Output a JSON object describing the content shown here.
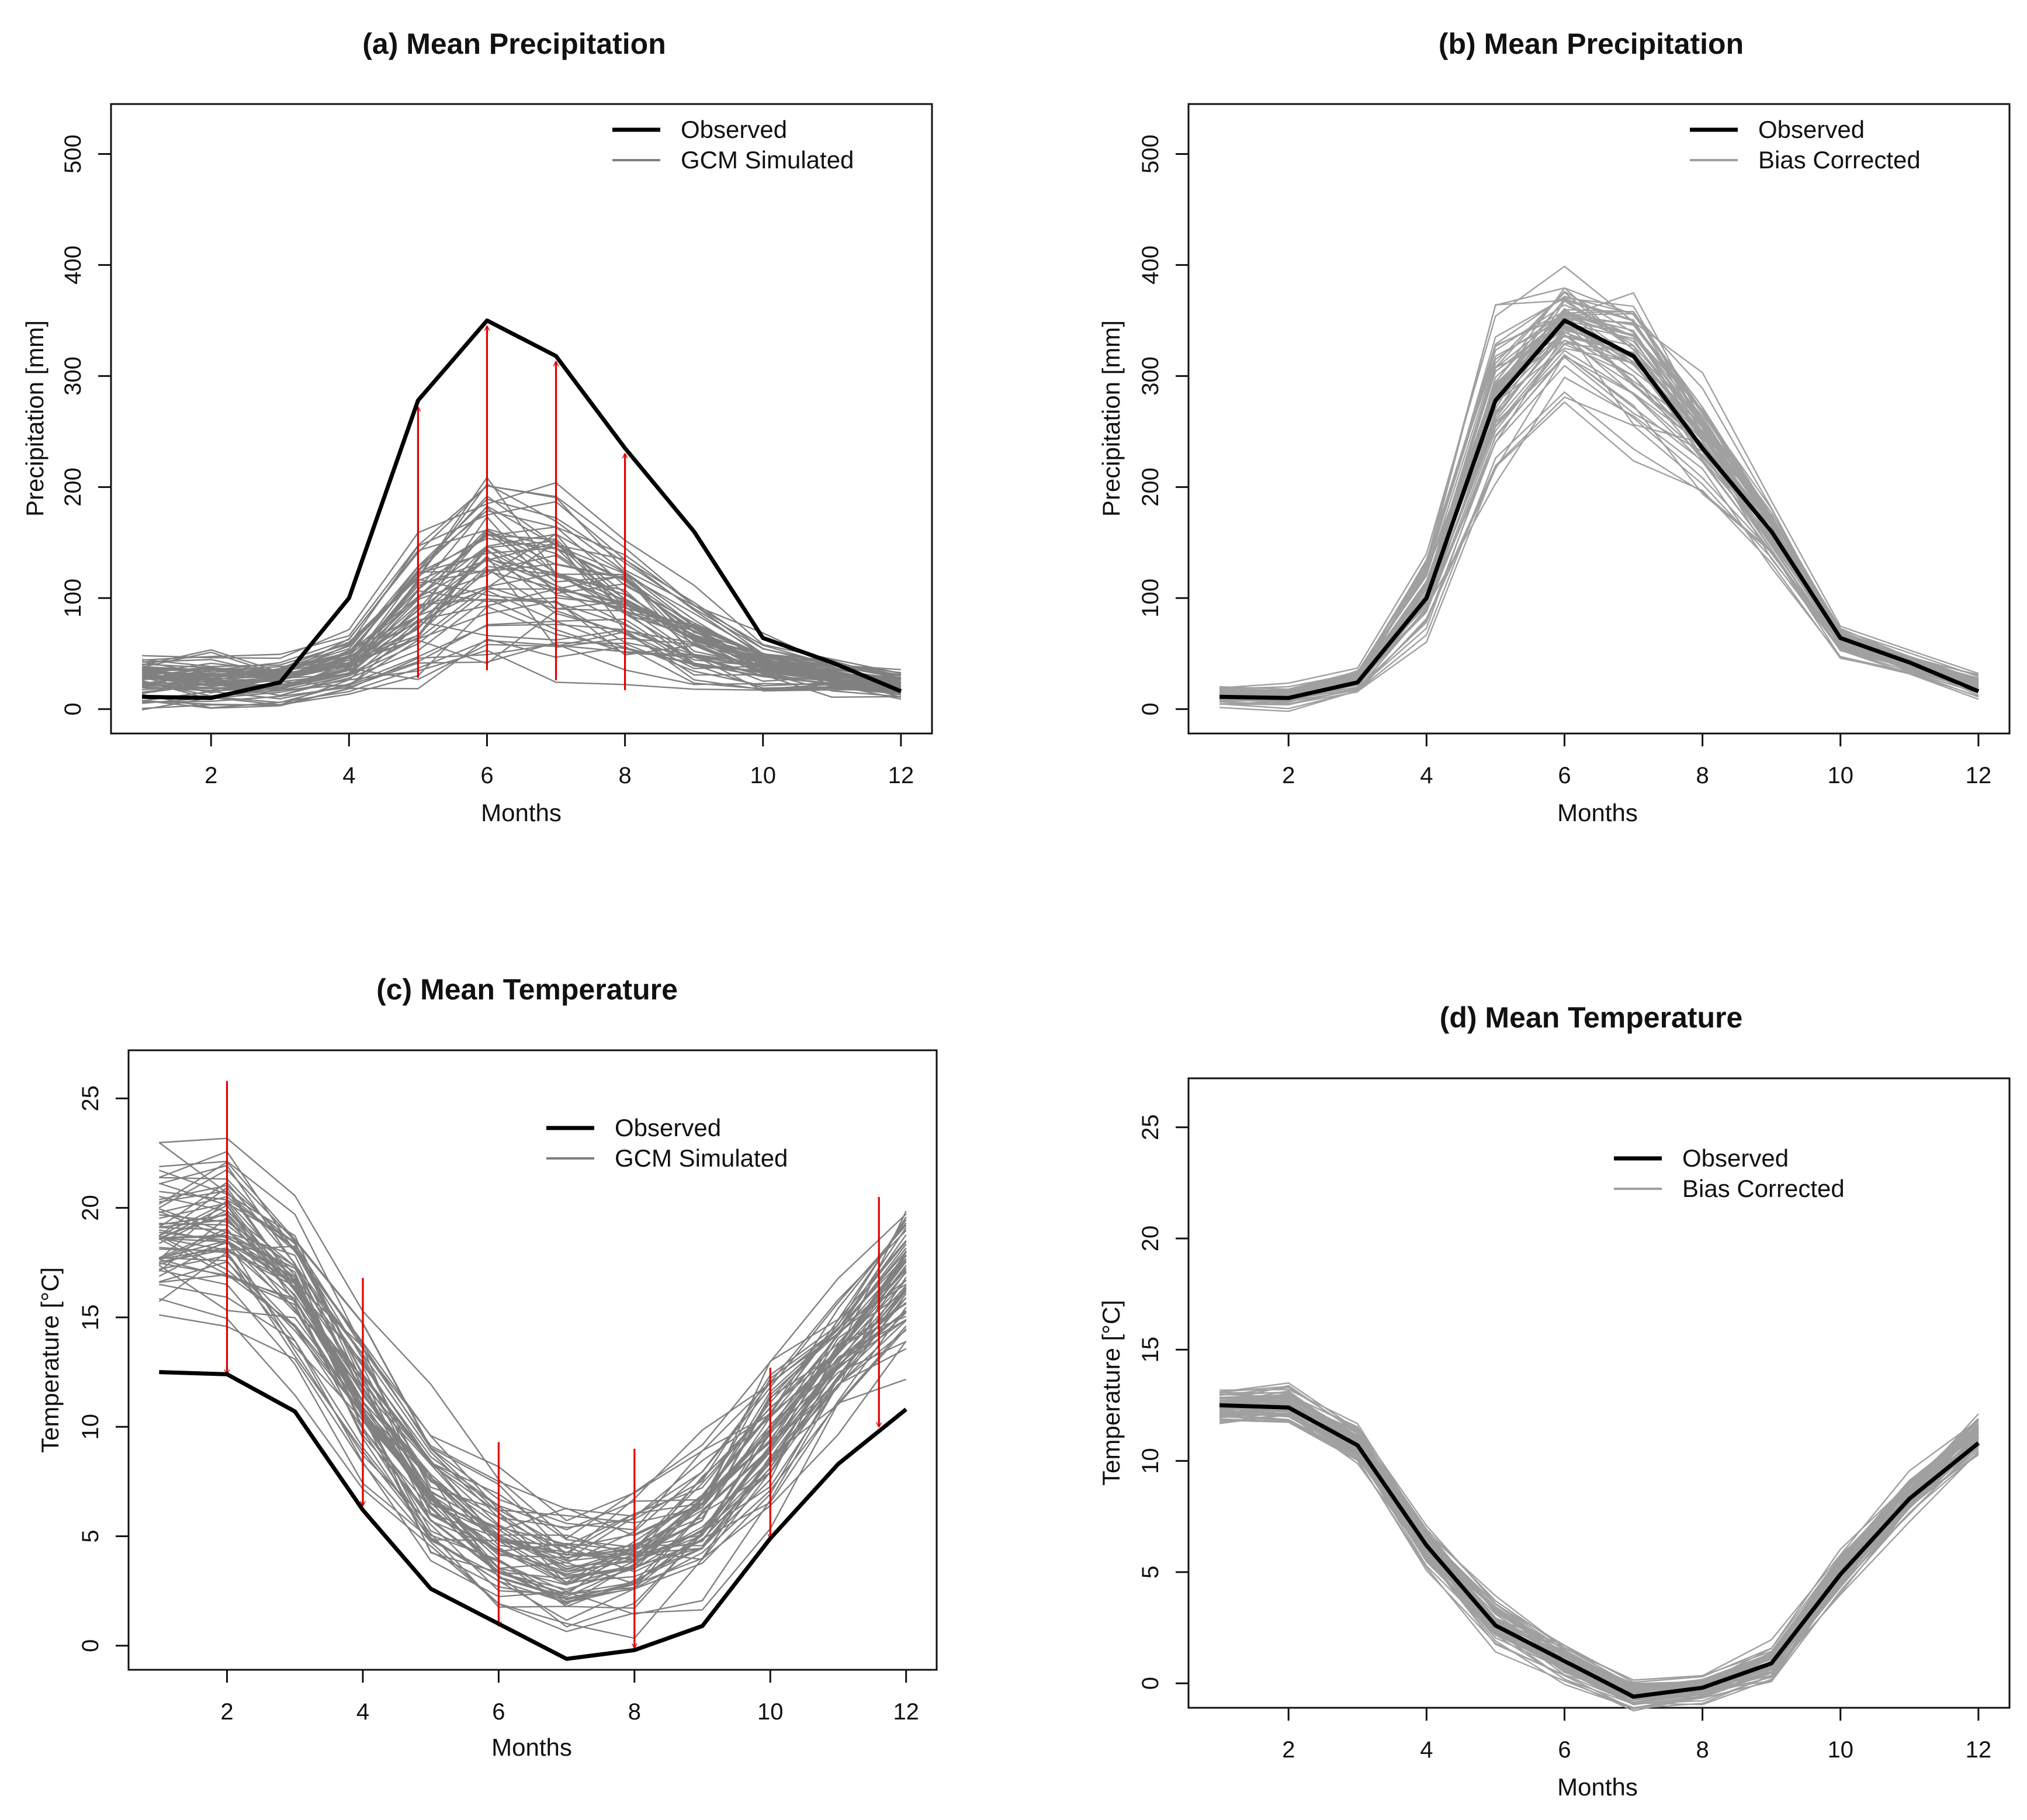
{
  "figure": {
    "description_labels": "four panel comparison of observed vs GCM and bias corrected series"
  },
  "chart_data": [
    {
      "id": "a",
      "type": "line",
      "title": "(a) Mean Precipitation",
      "xlabel": "Months",
      "ylabel": "Precipitation [mm]",
      "xlim": [
        0.55,
        12.45
      ],
      "ylim": [
        -22,
        545
      ],
      "xticks": [
        2,
        4,
        6,
        8,
        10,
        12
      ],
      "yticks": [
        0,
        100,
        200,
        300,
        400,
        500
      ],
      "legend": {
        "placement": "top-right",
        "entries": [
          "Observed",
          "GCM Simulated"
        ]
      },
      "observed": {
        "name": "Observed",
        "x": [
          1,
          2,
          3,
          4,
          5,
          6,
          7,
          8,
          9,
          10,
          11,
          12
        ],
        "values": [
          11,
          10,
          24,
          100,
          278,
          350,
          318,
          235,
          160,
          64,
          42,
          16
        ]
      },
      "ensemble": {
        "name": "GCM Simulated",
        "count": 60,
        "mean": [
          27,
          27,
          26,
          42,
          95,
          135,
          120,
          95,
          65,
          40,
          30,
          22
        ],
        "spread": [
          16,
          16,
          14,
          18,
          45,
          60,
          52,
          42,
          25,
          15,
          10,
          8
        ]
      },
      "arrows": [
        {
          "x": 5,
          "from": 28,
          "to": 272
        },
        {
          "x": 6,
          "from": 35,
          "to": 345
        },
        {
          "x": 7,
          "from": 26,
          "to": 313
        },
        {
          "x": 8,
          "from": 17,
          "to": 230
        }
      ]
    },
    {
      "id": "b",
      "type": "line",
      "title": "(b) Mean Precipitation",
      "xlabel": "Months",
      "ylabel": "Precipitation [mm]",
      "xlim": [
        0.55,
        12.45
      ],
      "ylim": [
        -22,
        545
      ],
      "xticks": [
        2,
        4,
        6,
        8,
        10,
        12
      ],
      "yticks": [
        0,
        100,
        200,
        300,
        400,
        500
      ],
      "legend": {
        "placement": "top-right",
        "entries": [
          "Observed",
          "Bias Corrected"
        ]
      },
      "observed": {
        "name": "Observed",
        "x": [
          1,
          2,
          3,
          4,
          5,
          6,
          7,
          8,
          9,
          10,
          11,
          12
        ],
        "values": [
          11,
          10,
          24,
          100,
          278,
          350,
          318,
          235,
          160,
          64,
          42,
          16
        ]
      },
      "ensemble": {
        "name": "Bias Corrected",
        "count": 60,
        "mean": [
          13,
          12,
          26,
          105,
          285,
          345,
          320,
          245,
          160,
          62,
          42,
          22
        ],
        "spread": [
          6,
          6,
          6,
          22,
          45,
          35,
          42,
          30,
          20,
          8,
          6,
          6
        ]
      },
      "arrows": []
    },
    {
      "id": "c",
      "type": "line",
      "title": "(c) Mean Temperature",
      "xlabel": "Months",
      "ylabel": "Temperature [°C]",
      "xlim": [
        0.55,
        12.45
      ],
      "ylim": [
        -1.1,
        27.2
      ],
      "xticks": [
        2,
        4,
        6,
        8,
        10,
        12
      ],
      "yticks": [
        0,
        5,
        10,
        15,
        20,
        25
      ],
      "legend": {
        "placement": "top-right",
        "entries": [
          "Observed",
          "GCM Simulated"
        ]
      },
      "observed": {
        "name": "Observed",
        "x": [
          1,
          2,
          3,
          4,
          5,
          6,
          7,
          8,
          9,
          10,
          11,
          12
        ],
        "values": [
          12.5,
          12.4,
          10.7,
          6.2,
          2.6,
          1.0,
          -0.6,
          -0.2,
          0.9,
          4.9,
          8.3,
          10.8
        ]
      },
      "ensemble": {
        "name": "GCM Simulated",
        "count": 60,
        "mean": [
          18.8,
          19.0,
          16.0,
          11.0,
          6.8,
          4.5,
          3.5,
          3.9,
          5.7,
          9.5,
          13.2,
          16.6
        ],
        "spread": [
          2.6,
          2.8,
          2.8,
          2.6,
          2.3,
          2.1,
          2.0,
          2.1,
          2.2,
          2.2,
          2.1,
          2.6
        ]
      },
      "arrows": [
        {
          "x": 2,
          "from": 25.8,
          "to": 12.4
        },
        {
          "x": 4,
          "from": 16.8,
          "to": 6.4
        },
        {
          "x": 6,
          "from": 9.3,
          "to": 0.9
        },
        {
          "x": 8,
          "from": 9.0,
          "to": -0.1
        },
        {
          "x": 10,
          "from": 12.7,
          "to": 4.9
        },
        {
          "x": 11.6,
          "from": 20.5,
          "to": 10.0
        }
      ]
    },
    {
      "id": "d",
      "type": "line",
      "title": "(d) Mean Temperature",
      "xlabel": "Months",
      "ylabel": "Temperature [°C]",
      "xlim": [
        0.55,
        12.45
      ],
      "ylim": [
        -1.1,
        27.2
      ],
      "xticks": [
        2,
        4,
        6,
        8,
        10,
        12
      ],
      "yticks": [
        0,
        5,
        10,
        15,
        20,
        25
      ],
      "legend": {
        "placement": "top-right",
        "entries": [
          "Observed",
          "Bias Corrected"
        ]
      },
      "observed": {
        "name": "Observed",
        "x": [
          1,
          2,
          3,
          4,
          5,
          6,
          7,
          8,
          9,
          10,
          11,
          12
        ],
        "values": [
          12.5,
          12.4,
          10.7,
          6.2,
          2.6,
          1.0,
          -0.6,
          -0.2,
          0.9,
          4.9,
          8.3,
          10.8
        ]
      },
      "ensemble": {
        "name": "Bias Corrected",
        "count": 60,
        "mean": [
          12.5,
          12.6,
          10.8,
          6.2,
          2.8,
          1.0,
          -0.5,
          -0.2,
          1.0,
          5.1,
          8.5,
          11.2
        ],
        "spread": [
          0.5,
          0.6,
          0.5,
          0.6,
          0.7,
          0.6,
          0.4,
          0.4,
          0.6,
          0.6,
          0.6,
          0.6
        ]
      },
      "arrows": []
    }
  ]
}
